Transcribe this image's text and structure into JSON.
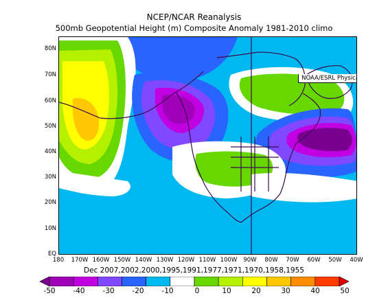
{
  "title": "NCEP/NCAR Reanalysis",
  "subtitle": "500mb Geopotential Height (m) Composite Anomaly 1981-2010 climo",
  "credit": "NOAA/ESRL Physical Sciences Division",
  "caption": "Dec 2007,2002,2000,1995,1991,1977,1971,1970,1958,1955",
  "lat_labels": [
    "80N",
    "70N",
    "60N",
    "50N",
    "40N",
    "30N",
    "20N",
    "10N",
    "EQ"
  ],
  "lon_labels": [
    "180",
    "170W",
    "160W",
    "150W",
    "140W",
    "130W",
    "120W",
    "110W",
    "100W",
    "90W",
    "80W",
    "70W",
    "60W",
    "50W",
    "40W"
  ],
  "colorbar": {
    "labels": [
      "-50",
      "-40",
      "-30",
      "-20",
      "-10",
      "0",
      "10",
      "20",
      "30",
      "40",
      "50"
    ],
    "colors": [
      "#7a0090",
      "#a000b8",
      "#c000e0",
      "#8048ff",
      "#2a64ff",
      "#00b8f0",
      "#ffffff",
      "#66d800",
      "#b4f000",
      "#ffff00",
      "#ffc800",
      "#ff8c00",
      "#ff3c00",
      "#e00000"
    ]
  },
  "map_data": {
    "lon_range": [
      -180,
      -40
    ],
    "lat_range": [
      0,
      85
    ],
    "anomaly_centers": [
      {
        "lon": -165,
        "lat": 50,
        "value": 45,
        "label": "positive"
      },
      {
        "lon": -128,
        "lat": 60,
        "value": -35,
        "label": "negative"
      },
      {
        "lon": -48,
        "lat": 48,
        "value": -50,
        "label": "negative"
      },
      {
        "lon": -70,
        "lat": 65,
        "value": 20,
        "label": "positive"
      },
      {
        "lon": -100,
        "lat": 35,
        "value": 12,
        "label": "positive"
      }
    ]
  }
}
